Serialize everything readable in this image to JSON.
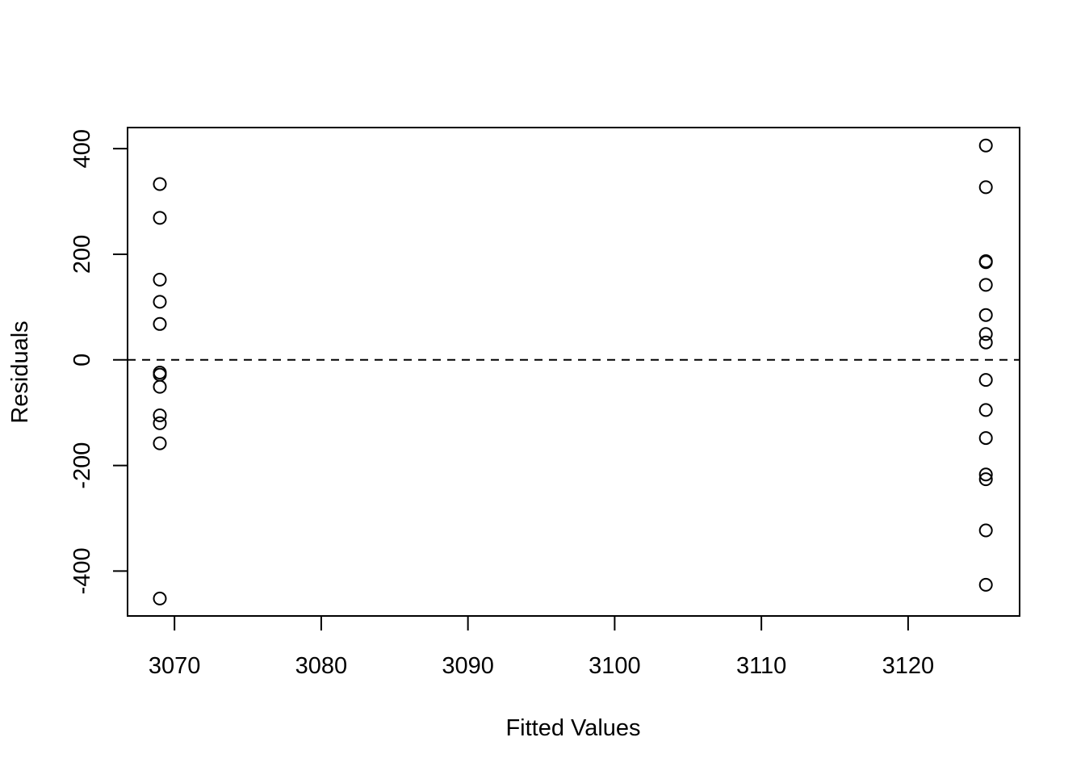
{
  "chart_data": {
    "type": "scatter",
    "title": "",
    "xlabel": "Fitted Values",
    "ylabel": "Residuals",
    "xlim": [
      3066.8,
      3127.6
    ],
    "ylim": [
      -485,
      440
    ],
    "xticks": [
      3070,
      3080,
      3090,
      3100,
      3110,
      3120
    ],
    "xtick_labels": [
      "3070",
      "3080",
      "3090",
      "3100",
      "3110",
      "3120"
    ],
    "yticks": [
      -400,
      -200,
      0,
      200,
      400
    ],
    "ytick_labels": [
      "-400",
      "-200",
      "0",
      "200",
      "400"
    ],
    "reference_line": {
      "y": 0,
      "style": "dashed"
    },
    "grid": false,
    "marker": "open-circle",
    "series": [
      {
        "points": [
          {
            "x": 3069.0,
            "y": 333
          },
          {
            "x": 3069.0,
            "y": 269
          },
          {
            "x": 3069.0,
            "y": 152
          },
          {
            "x": 3069.0,
            "y": 110
          },
          {
            "x": 3069.0,
            "y": 68
          },
          {
            "x": 3069.0,
            "y": -24
          },
          {
            "x": 3069.0,
            "y": -28
          },
          {
            "x": 3069.0,
            "y": -51
          },
          {
            "x": 3069.0,
            "y": -105
          },
          {
            "x": 3069.0,
            "y": -120
          },
          {
            "x": 3069.0,
            "y": -158
          },
          {
            "x": 3069.0,
            "y": -452
          },
          {
            "x": 3125.3,
            "y": 406
          },
          {
            "x": 3125.3,
            "y": 327
          },
          {
            "x": 3125.3,
            "y": 187
          },
          {
            "x": 3125.3,
            "y": 185
          },
          {
            "x": 3125.3,
            "y": 142
          },
          {
            "x": 3125.3,
            "y": 85
          },
          {
            "x": 3125.3,
            "y": 49
          },
          {
            "x": 3125.3,
            "y": 33
          },
          {
            "x": 3125.3,
            "y": -38
          },
          {
            "x": 3125.3,
            "y": -95
          },
          {
            "x": 3125.3,
            "y": -148
          },
          {
            "x": 3125.3,
            "y": -217
          },
          {
            "x": 3125.3,
            "y": -226
          },
          {
            "x": 3125.3,
            "y": -323
          },
          {
            "x": 3125.3,
            "y": -426
          }
        ]
      }
    ]
  }
}
